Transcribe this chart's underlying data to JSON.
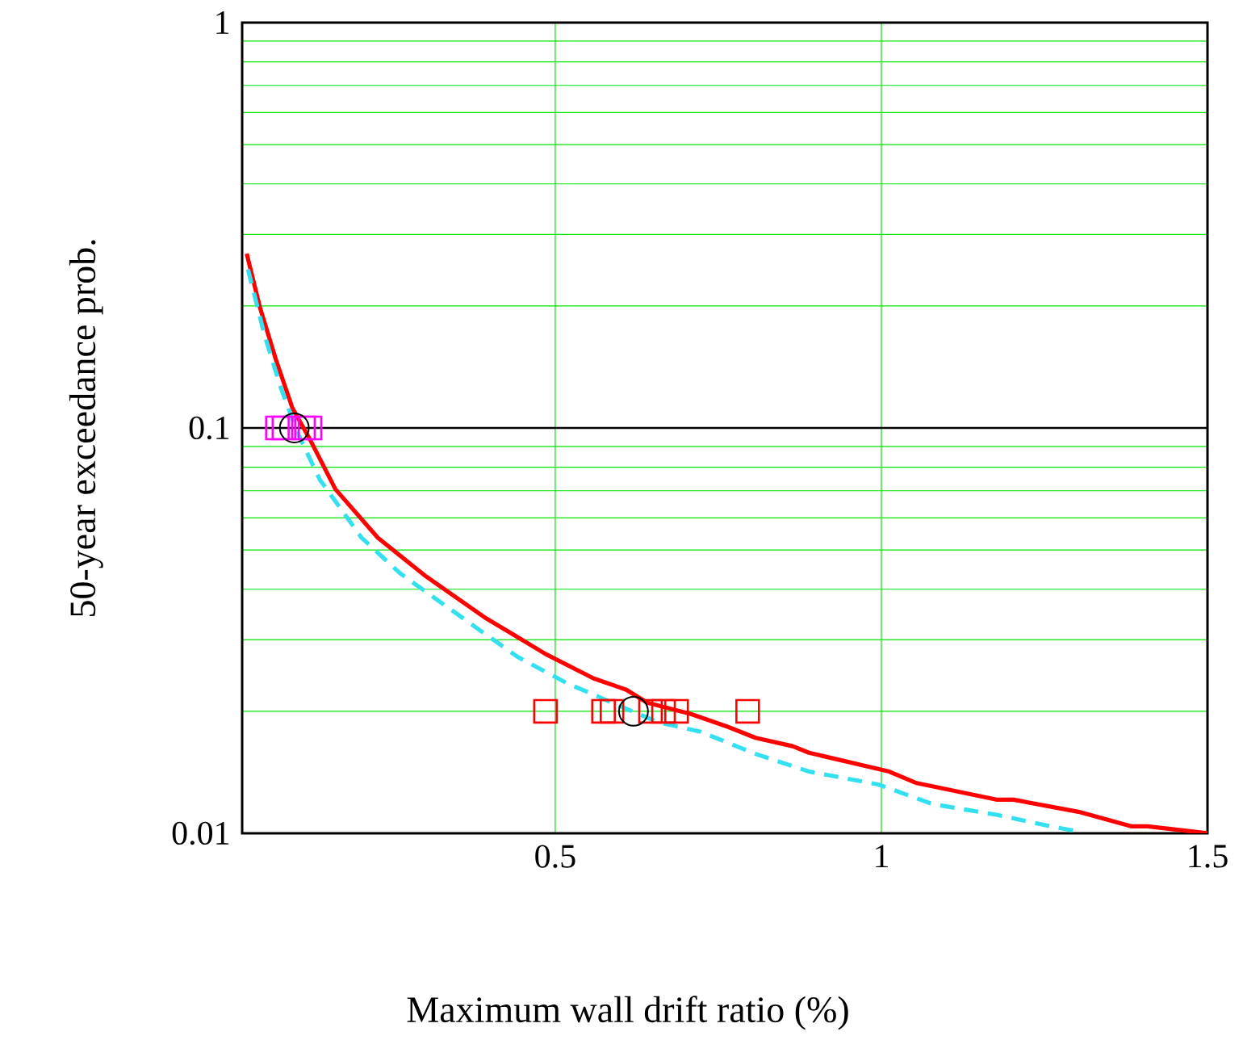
{
  "chart_data": {
    "type": "line",
    "xlabel": "Maximum wall drift ratio (%)",
    "ylabel": "50-year exceedance prob.",
    "xlim": [
      0.02,
      1.5
    ],
    "ylim": [
      0.01,
      1
    ],
    "xticks": [
      0.5,
      1,
      1.5
    ],
    "yticks": [
      0.01,
      0.1,
      1
    ],
    "log": true,
    "grid": true,
    "ref_lines": [
      {
        "axis": "y",
        "value": 0.1,
        "color": "#000000"
      }
    ],
    "series": [
      {
        "color": "#ff0000",
        "line_style": "solid",
        "marker": "none",
        "x": [
          0.027,
          0.047,
          0.072,
          0.097,
          0.125,
          0.163,
          0.228,
          0.302,
          0.394,
          0.436,
          0.485,
          0.559,
          0.609,
          0.641,
          0.708,
          0.765,
          0.807,
          0.864,
          0.889,
          1.012,
          1.054,
          1.178,
          1.203,
          1.302,
          1.384,
          1.408,
          1.5
        ],
        "values": [
          0.269,
          0.199,
          0.147,
          0.112,
          0.093,
          0.0706,
          0.0536,
          0.043,
          0.0339,
          0.0309,
          0.0277,
          0.0241,
          0.0226,
          0.021,
          0.0197,
          0.0183,
          0.0172,
          0.0164,
          0.0158,
          0.0142,
          0.0133,
          0.0121,
          0.0121,
          0.0113,
          0.0104,
          0.0104,
          0.01
        ]
      },
      {
        "color": "#33e0f0",
        "line_style": "dashed",
        "marker": "none",
        "x": [
          0.029,
          0.054,
          0.079,
          0.104,
          0.139,
          0.203,
          0.262,
          0.394,
          0.443,
          0.517,
          0.599,
          0.658,
          0.723,
          0.807,
          0.889,
          0.995,
          1.079,
          1.178,
          1.26,
          1.302
        ],
        "values": [
          0.246,
          0.17,
          0.126,
          0.098,
          0.0746,
          0.0536,
          0.0438,
          0.0309,
          0.0272,
          0.0235,
          0.0206,
          0.0188,
          0.0178,
          0.0157,
          0.0142,
          0.0132,
          0.0118,
          0.0111,
          0.0104,
          0.0101
        ]
      },
      {
        "type": "scatter",
        "color": "#ff00ff",
        "marker": "square",
        "x": [
          0.074,
          0.084,
          0.114,
          0.124
        ],
        "values": [
          0.1,
          0.1,
          0.1,
          0.1
        ]
      },
      {
        "type": "scatter",
        "color": "#ff0000",
        "marker": "square",
        "x": [
          0.485,
          0.574,
          0.587,
          0.646,
          0.666,
          0.686,
          0.795
        ],
        "values": [
          0.02,
          0.02,
          0.02,
          0.02,
          0.02,
          0.02,
          0.02
        ]
      },
      {
        "type": "scatter",
        "color": "#000000",
        "marker": "circle",
        "x": [
          0.1,
          0.62
        ],
        "values": [
          0.1,
          0.02
        ]
      }
    ]
  }
}
